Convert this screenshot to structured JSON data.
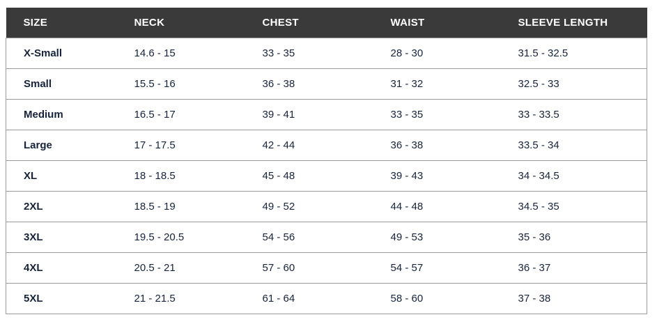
{
  "table": {
    "headers": [
      "SIZE",
      "NECK",
      "CHEST",
      "WAIST",
      "SLEEVE LENGTH"
    ],
    "rows": [
      [
        "X-Small",
        "14.6 - 15",
        "33 - 35",
        "28 - 30",
        "31.5 - 32.5"
      ],
      [
        "Small",
        "15.5 - 16",
        "36 - 38",
        "31 - 32",
        "32.5 - 33"
      ],
      [
        "Medium",
        "16.5 - 17",
        "39 - 41",
        "33 - 35",
        "33 - 33.5"
      ],
      [
        "Large",
        "17 - 17.5",
        "42 - 44",
        "36 - 38",
        "33.5 - 34"
      ],
      [
        "XL",
        "18 - 18.5",
        "45 - 48",
        "39 - 43",
        "34 - 34.5"
      ],
      [
        "2XL",
        "18.5 - 19",
        "49 - 52",
        "44 - 48",
        "34.5 - 35"
      ],
      [
        "3XL",
        "19.5 - 20.5",
        "54 - 56",
        "49 - 53",
        "35 - 36"
      ],
      [
        "4XL",
        "20.5 - 21",
        "57 - 60",
        "54 - 57",
        "36 - 37"
      ],
      [
        "5XL",
        "21 - 21.5",
        "61 - 64",
        "58 - 60",
        "37 - 38"
      ]
    ]
  },
  "colors": {
    "header_bg": "#3a3a3a",
    "text": "#16233a",
    "border": "#9a9a9a"
  }
}
